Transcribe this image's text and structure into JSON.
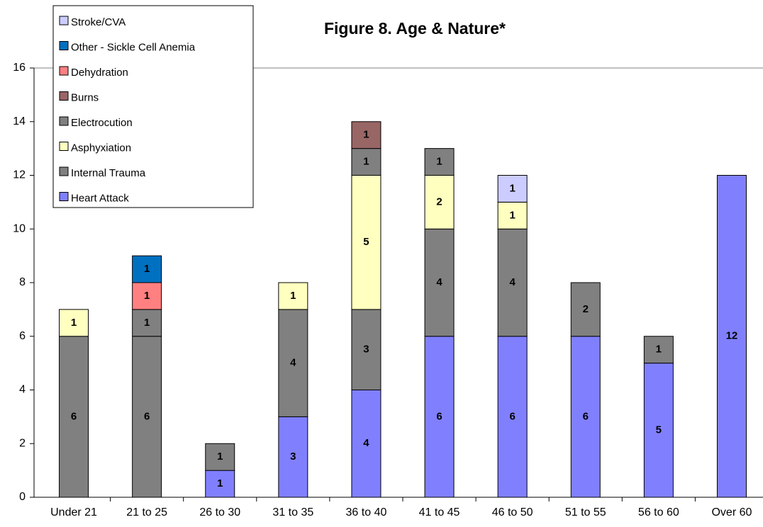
{
  "chart_data": {
    "type": "stacked_bar",
    "title": "Figure 8. Age & Nature*",
    "categories": [
      "Under 21",
      "21 to 25",
      "26 to 30",
      "31 to 35",
      "36 to 40",
      "41 to 45",
      "46 to 50",
      "51 to 55",
      "56 to 60",
      "Over 60"
    ],
    "series": [
      {
        "name": "Heart Attack",
        "color": "#8080ff",
        "values": [
          null,
          null,
          1,
          3,
          4,
          6,
          6,
          6,
          5,
          12
        ]
      },
      {
        "name": "Internal Trauma",
        "color": "#808080",
        "values": [
          6,
          6,
          1,
          4,
          3,
          4,
          4,
          2,
          1,
          null
        ]
      },
      {
        "name": "Asphyxiation",
        "color": "#ffffc0",
        "values": [
          1,
          null,
          null,
          1,
          5,
          2,
          1,
          null,
          null,
          null
        ]
      },
      {
        "name": "Electrocution",
        "color": "#808080",
        "values": [
          null,
          1,
          null,
          null,
          1,
          1,
          null,
          null,
          null,
          null
        ]
      },
      {
        "name": "Burns",
        "color": "#996666",
        "values": [
          null,
          null,
          null,
          null,
          1,
          null,
          null,
          null,
          null,
          null
        ]
      },
      {
        "name": "Dehydration",
        "color": "#ff8080",
        "values": [
          null,
          1,
          null,
          null,
          null,
          null,
          null,
          null,
          null,
          null
        ]
      },
      {
        "name": "Other - Sickle Cell Anemia",
        "color": "#0070c0",
        "values": [
          null,
          1,
          null,
          null,
          null,
          null,
          null,
          null,
          null,
          null
        ]
      },
      {
        "name": "Stroke/CVA",
        "color": "#ccccff",
        "values": [
          null,
          null,
          null,
          null,
          null,
          null,
          1,
          null,
          null,
          null
        ]
      }
    ],
    "ylim": [
      0,
      16
    ],
    "yticks": [
      0,
      2,
      4,
      6,
      8,
      10,
      12,
      14,
      16
    ],
    "grid": false,
    "legend": "upper left"
  }
}
